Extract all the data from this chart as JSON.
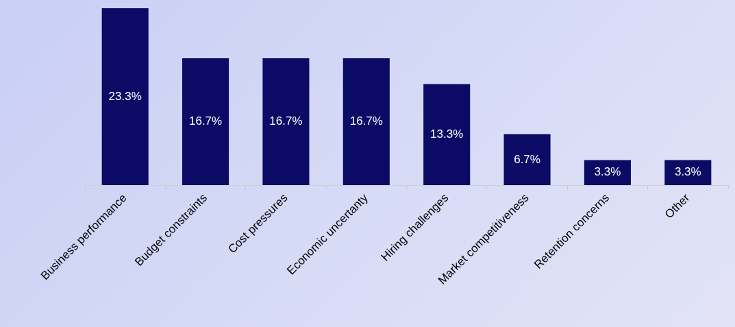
{
  "chart_data": {
    "type": "bar",
    "categories": [
      "Business performance",
      "Budget constraints",
      "Cost pressures",
      "Economic uncertanty",
      "Hiring challenges",
      "Market competitiveness",
      "Retention concerns",
      "Other"
    ],
    "values": [
      23.3,
      16.7,
      16.7,
      16.7,
      13.3,
      6.7,
      3.3,
      3.3
    ],
    "value_labels": [
      "23.3%",
      "16.7%",
      "16.7%",
      "16.7%",
      "13.3%",
      "6.7%",
      "3.3%",
      "3.3%"
    ],
    "color": "#0b0b66",
    "grid": false,
    "legend": false
  }
}
